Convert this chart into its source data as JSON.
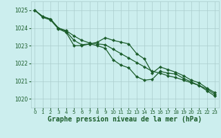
{
  "bg_color": "#cceeee",
  "grid_color": "#aacccc",
  "line_color": "#1a5c2a",
  "xlabel": "Graphe pression niveau de la mer (hPa)",
  "xlabel_fontsize": 7,
  "ylim": [
    1019.5,
    1025.5
  ],
  "xlim": [
    -0.5,
    23.5
  ],
  "yticks": [
    1020,
    1021,
    1022,
    1023,
    1024,
    1025
  ],
  "xticks": [
    0,
    1,
    2,
    3,
    4,
    5,
    6,
    7,
    8,
    9,
    10,
    11,
    12,
    13,
    14,
    15,
    16,
    17,
    18,
    19,
    20,
    21,
    22,
    23
  ],
  "series1": [
    1025.0,
    1024.65,
    1024.5,
    1024.0,
    1023.85,
    1023.55,
    1023.3,
    1023.15,
    1023.1,
    1023.05,
    1022.8,
    1022.55,
    1022.3,
    1022.05,
    1021.8,
    1021.55,
    1021.45,
    1021.3,
    1021.2,
    1021.05,
    1020.9,
    1020.75,
    1020.55,
    1020.25
  ],
  "series2": [
    1025.0,
    1024.65,
    1024.5,
    1024.0,
    1023.8,
    1023.3,
    1023.05,
    1023.1,
    1023.2,
    1023.45,
    1023.3,
    1023.2,
    1023.1,
    1022.55,
    1022.25,
    1021.45,
    1021.8,
    1021.65,
    1021.5,
    1021.3,
    1021.05,
    1020.9,
    1020.6,
    1020.35
  ],
  "series3": [
    1025.0,
    1024.6,
    1024.45,
    1023.95,
    1023.75,
    1023.0,
    1023.0,
    1023.1,
    1023.0,
    1022.85,
    1022.2,
    1021.9,
    1021.75,
    1021.25,
    1021.05,
    1021.1,
    1021.55,
    1021.45,
    1021.4,
    1021.15,
    1020.95,
    1020.75,
    1020.45,
    1020.15
  ]
}
